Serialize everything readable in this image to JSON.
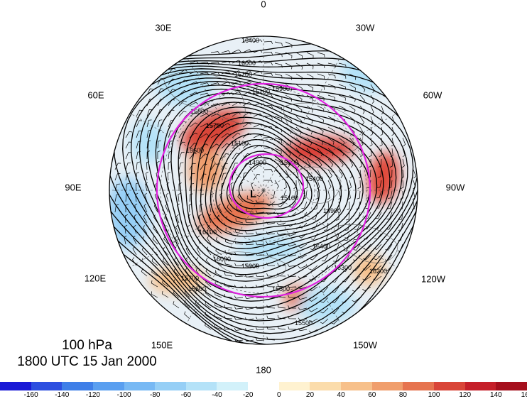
{
  "caption": {
    "level": "100 hPa",
    "time": "1800 UTC 15 Jan 2000"
  },
  "longitude_labels": [
    {
      "id": "lon-0",
      "text": "0"
    },
    {
      "id": "lon-30w",
      "text": "30W"
    },
    {
      "id": "lon-60w",
      "text": "60W"
    },
    {
      "id": "lon-90w",
      "text": "90W"
    },
    {
      "id": "lon-120w",
      "text": "120W"
    },
    {
      "id": "lon-150w",
      "text": "150W"
    },
    {
      "id": "lon-180",
      "text": "180"
    },
    {
      "id": "lon-150e",
      "text": "150E"
    },
    {
      "id": "lon-120e",
      "text": "120E"
    },
    {
      "id": "lon-90e",
      "text": "90E"
    },
    {
      "id": "lon-60e",
      "text": "60E"
    },
    {
      "id": "lon-30e",
      "text": "30E"
    }
  ],
  "low_marker": "L",
  "contour_labels": [
    "16400",
    "16300",
    "16200",
    "16100",
    "16000",
    "15900",
    "15800",
    "15700",
    "15600",
    "15500",
    "15400",
    "15100",
    "14900"
  ],
  "colorbar": {
    "ticks": [
      "-160",
      "-140",
      "-120",
      "-100",
      "-80",
      "-60",
      "-40",
      "-20",
      "0",
      "20",
      "40",
      "60",
      "80",
      "100",
      "120",
      "140",
      "160"
    ],
    "colors": [
      "#1a1ad6",
      "#2d4fe0",
      "#3f7fe8",
      "#5a9ff0",
      "#78b9f4",
      "#96cff6",
      "#b4e2f8",
      "#d2f1fa",
      "#ffffff",
      "#fff2d0",
      "#fbdcab",
      "#f7c08a",
      "#f09e6c",
      "#e6744f",
      "#d94538",
      "#c51f29",
      "#a50f1d"
    ]
  },
  "colors": {
    "circle": "#e020e0",
    "contour": "#000000",
    "background": "#ffffff"
  }
}
